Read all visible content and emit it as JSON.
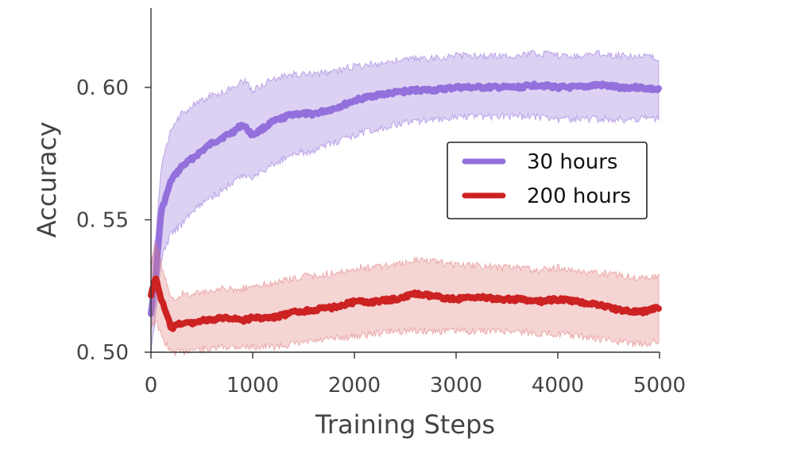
{
  "chart_data": {
    "type": "line",
    "title": "",
    "xlabel": "Training Steps",
    "ylabel": "Accuracy",
    "xlim": [
      0,
      5000
    ],
    "ylim": [
      0.5,
      0.63
    ],
    "xticks": [
      0,
      1000,
      2000,
      3000,
      4000,
      5000
    ],
    "xtick_labels": [
      "0",
      "1000",
      "2000",
      "3000",
      "4000",
      "5000"
    ],
    "yticks": [
      0.5,
      0.55,
      0.6
    ],
    "ytick_labels": [
      "0. 50",
      "0. 55",
      "0. 60"
    ],
    "grid": false,
    "legend": {
      "position": "right-center",
      "entries": [
        "30 hours",
        "200 hours"
      ]
    },
    "x": [
      0,
      50,
      100,
      200,
      300,
      400,
      500,
      600,
      700,
      800,
      900,
      1000,
      1200,
      1400,
      1600,
      1800,
      2000,
      2200,
      2400,
      2600,
      2800,
      3000,
      3200,
      3400,
      3600,
      3800,
      4000,
      4200,
      4400,
      4600,
      4800,
      5000
    ],
    "series": [
      {
        "name": "30 hours",
        "color": "#9370DB",
        "band_color": "#9370DB",
        "values": [
          0.515,
          0.53,
          0.553,
          0.565,
          0.57,
          0.573,
          0.576,
          0.579,
          0.581,
          0.583,
          0.586,
          0.582,
          0.587,
          0.59,
          0.59,
          0.592,
          0.595,
          0.597,
          0.598,
          0.599,
          0.599,
          0.6,
          0.6,
          0.6,
          0.6,
          0.601,
          0.6,
          0.6,
          0.601,
          0.6,
          0.6,
          0.599
        ],
        "lower": [
          0.5,
          0.515,
          0.535,
          0.545,
          0.548,
          0.553,
          0.556,
          0.559,
          0.561,
          0.564,
          0.567,
          0.566,
          0.571,
          0.575,
          0.576,
          0.579,
          0.582,
          0.584,
          0.586,
          0.587,
          0.588,
          0.589,
          0.589,
          0.589,
          0.589,
          0.589,
          0.588,
          0.588,
          0.588,
          0.588,
          0.588,
          0.588
        ],
        "upper": [
          0.53,
          0.545,
          0.57,
          0.584,
          0.59,
          0.593,
          0.595,
          0.597,
          0.598,
          0.6,
          0.603,
          0.599,
          0.603,
          0.605,
          0.605,
          0.606,
          0.608,
          0.609,
          0.61,
          0.611,
          0.611,
          0.612,
          0.612,
          0.612,
          0.612,
          0.613,
          0.612,
          0.612,
          0.613,
          0.612,
          0.612,
          0.611
        ]
      },
      {
        "name": "200 hours",
        "color": "#CC2222",
        "band_color": "#E07878",
        "values": [
          0.522,
          0.528,
          0.52,
          0.509,
          0.511,
          0.511,
          0.512,
          0.512,
          0.513,
          0.513,
          0.512,
          0.513,
          0.513,
          0.515,
          0.516,
          0.517,
          0.519,
          0.519,
          0.52,
          0.522,
          0.521,
          0.52,
          0.521,
          0.52,
          0.52,
          0.519,
          0.52,
          0.519,
          0.518,
          0.516,
          0.515,
          0.517
        ],
        "lower": [
          0.51,
          0.512,
          0.506,
          0.5,
          0.5,
          0.501,
          0.501,
          0.501,
          0.502,
          0.502,
          0.502,
          0.502,
          0.502,
          0.503,
          0.504,
          0.505,
          0.506,
          0.507,
          0.508,
          0.508,
          0.508,
          0.508,
          0.508,
          0.508,
          0.508,
          0.507,
          0.507,
          0.506,
          0.505,
          0.504,
          0.503,
          0.504
        ],
        "upper": [
          0.534,
          0.542,
          0.533,
          0.52,
          0.522,
          0.522,
          0.523,
          0.523,
          0.524,
          0.524,
          0.524,
          0.525,
          0.526,
          0.528,
          0.529,
          0.53,
          0.532,
          0.532,
          0.533,
          0.535,
          0.534,
          0.533,
          0.533,
          0.532,
          0.532,
          0.531,
          0.532,
          0.531,
          0.53,
          0.529,
          0.528,
          0.529
        ]
      }
    ]
  }
}
